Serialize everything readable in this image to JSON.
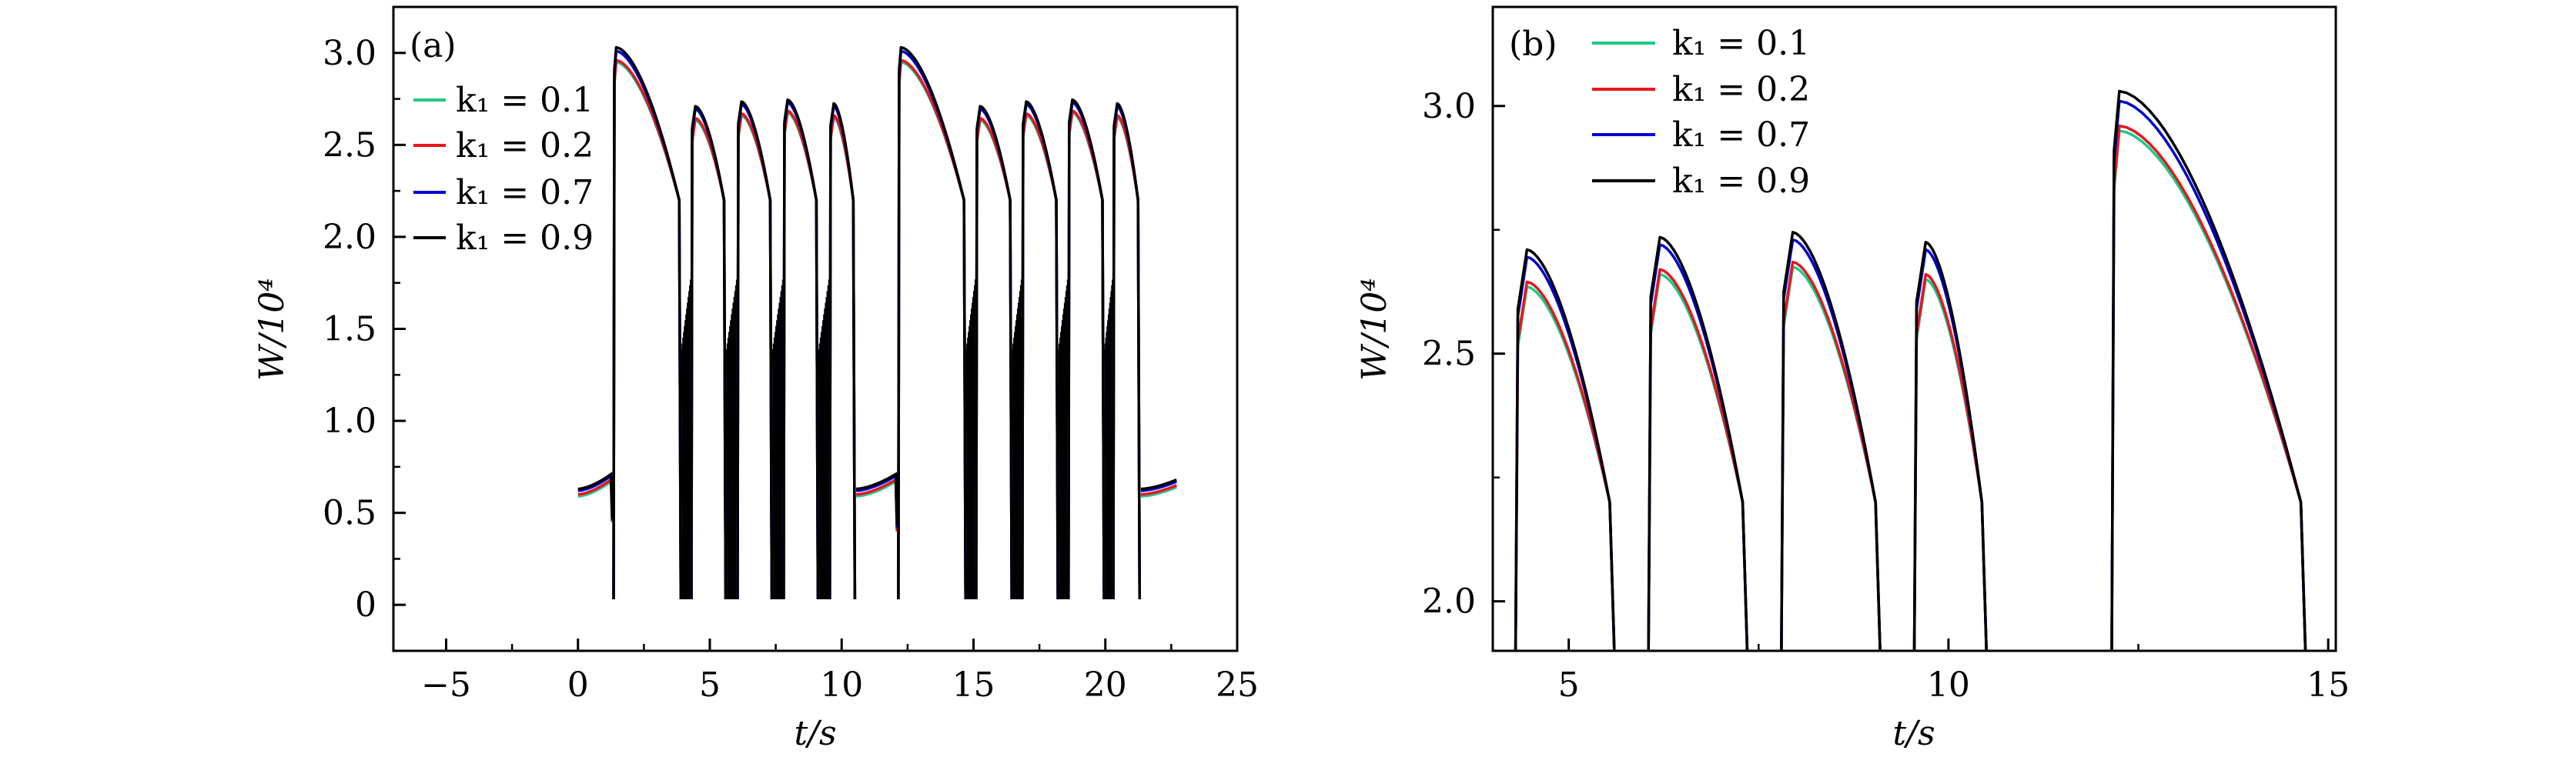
{
  "chart_data": [
    {
      "type": "line",
      "panel_label": "(a)",
      "xlabel": "t/s",
      "ylabel": "W/10⁴",
      "xlim": [
        -7,
        25
      ],
      "ylim": [
        -0.25,
        3.25
      ],
      "xticks": [
        -5,
        0,
        5,
        10,
        15,
        20,
        25
      ],
      "xtick_labels": [
        "−5",
        "0",
        "5",
        "10",
        "15",
        "20",
        "25"
      ],
      "yticks": [
        0,
        0.5,
        1.0,
        1.5,
        2.0,
        2.5,
        3.0
      ],
      "ytick_labels": [
        "0",
        "0.5",
        "1.0",
        "1.5",
        "2.0",
        "2.5",
        "3.0"
      ],
      "grid": false,
      "legend_position": "top-left",
      "bursts": [
        [
          3.9,
          4.3
        ],
        [
          5.6,
          6.05
        ],
        [
          7.35,
          7.8
        ],
        [
          9.1,
          9.55
        ],
        [
          14.7,
          15.1
        ],
        [
          16.45,
          16.85
        ],
        [
          18.2,
          18.6
        ],
        [
          19.95,
          20.3
        ]
      ],
      "burst_max": 1.8,
      "series": [
        {
          "name": "k₁ = 0.1",
          "color": "#1ec98a",
          "baseline": [
            [
              0,
              0.59,
              1.25,
              0.67
            ],
            [
              10.55,
              0.59,
              12.05,
              0.67
            ],
            [
              21.35,
              0.59,
              22.7,
              0.64
            ]
          ],
          "dips": [
            [
              1.3,
              0.45
            ],
            [
              12.1,
              0.4
            ]
          ],
          "pulses": [
            [
              1.35,
              1.45,
              2.95,
              3.9
            ],
            [
              4.3,
              4.45,
              2.635,
              5.6
            ],
            [
              6.05,
              6.2,
              2.66,
              7.35
            ],
            [
              7.8,
              7.95,
              2.675,
              9.1
            ],
            [
              9.55,
              9.7,
              2.65,
              10.5
            ],
            [
              12.15,
              12.25,
              2.95,
              14.7
            ],
            [
              15.1,
              15.25,
              2.635,
              16.45
            ],
            [
              16.85,
              17.0,
              2.66,
              18.2
            ],
            [
              18.6,
              18.75,
              2.675,
              19.95
            ],
            [
              20.3,
              20.45,
              2.65,
              21.3
            ]
          ]
        },
        {
          "name": "k₁ = 0.2",
          "color": "#e8141b",
          "baseline": [
            [
              0,
              0.6,
              1.25,
              0.68
            ],
            [
              10.55,
              0.6,
              12.05,
              0.68
            ],
            [
              21.35,
              0.6,
              22.7,
              0.65
            ]
          ],
          "dips": [
            [
              1.3,
              0.45
            ],
            [
              12.1,
              0.4
            ]
          ],
          "pulses": [
            [
              1.35,
              1.45,
              2.96,
              3.9
            ],
            [
              4.3,
              4.45,
              2.645,
              5.6
            ],
            [
              6.05,
              6.2,
              2.67,
              7.35
            ],
            [
              7.8,
              7.95,
              2.685,
              9.1
            ],
            [
              9.55,
              9.7,
              2.66,
              10.5
            ],
            [
              12.15,
              12.25,
              2.96,
              14.7
            ],
            [
              15.1,
              15.25,
              2.645,
              16.45
            ],
            [
              16.85,
              17.0,
              2.67,
              18.2
            ],
            [
              18.6,
              18.75,
              2.685,
              19.95
            ],
            [
              20.3,
              20.45,
              2.66,
              21.3
            ]
          ]
        },
        {
          "name": "k₁ = 0.7",
          "color": "#0000d0",
          "baseline": [
            [
              0,
              0.62,
              1.25,
              0.7
            ],
            [
              10.55,
              0.62,
              12.05,
              0.7
            ],
            [
              21.35,
              0.62,
              22.7,
              0.67
            ]
          ],
          "dips": [
            [
              1.3,
              0.46
            ],
            [
              12.1,
              0.42
            ]
          ],
          "pulses": [
            [
              1.35,
              1.45,
              3.01,
              3.9
            ],
            [
              4.3,
              4.45,
              2.695,
              5.6
            ],
            [
              6.05,
              6.2,
              2.72,
              7.35
            ],
            [
              7.8,
              7.95,
              2.73,
              9.1
            ],
            [
              9.55,
              9.7,
              2.71,
              10.5
            ],
            [
              12.15,
              12.25,
              3.01,
              14.7
            ],
            [
              15.1,
              15.25,
              2.695,
              16.45
            ],
            [
              16.85,
              17.0,
              2.72,
              18.2
            ],
            [
              18.6,
              18.75,
              2.73,
              19.95
            ],
            [
              20.3,
              20.45,
              2.71,
              21.3
            ]
          ]
        },
        {
          "name": "k₁ = 0.9",
          "color": "#000000",
          "baseline": [
            [
              0,
              0.63,
              1.25,
              0.71
            ],
            [
              10.55,
              0.63,
              12.05,
              0.71
            ],
            [
              21.35,
              0.63,
              22.7,
              0.68
            ]
          ],
          "dips": [
            [
              1.3,
              0.47
            ],
            [
              12.1,
              0.43
            ]
          ],
          "pulses": [
            [
              1.35,
              1.45,
              3.03,
              3.9
            ],
            [
              4.3,
              4.45,
              2.71,
              5.6
            ],
            [
              6.05,
              6.2,
              2.735,
              7.35
            ],
            [
              7.8,
              7.95,
              2.745,
              9.1
            ],
            [
              9.55,
              9.7,
              2.725,
              10.5
            ],
            [
              12.15,
              12.25,
              3.03,
              14.7
            ],
            [
              15.1,
              15.25,
              2.71,
              16.45
            ],
            [
              16.85,
              17.0,
              2.735,
              18.2
            ],
            [
              18.6,
              18.75,
              2.745,
              19.95
            ],
            [
              20.3,
              20.45,
              2.725,
              21.3
            ]
          ]
        }
      ]
    },
    {
      "type": "line",
      "panel_label": "(b)",
      "xlabel": "t/s",
      "ylabel": "W/10⁴",
      "xlim": [
        4,
        15.1
      ],
      "ylim": [
        1.9,
        3.2
      ],
      "xticks": [
        5,
        10,
        15
      ],
      "xtick_labels": [
        "5",
        "10",
        "15"
      ],
      "yticks": [
        2.0,
        2.5,
        3.0
      ],
      "ytick_labels": [
        "2.0",
        "2.5",
        "3.0"
      ],
      "grid": false,
      "legend_position": "top-left",
      "series": [
        {
          "name": "k₁ = 0.1",
          "color": "#1ec98a",
          "pulses": [
            [
              4.3,
              4.45,
              2.635,
              5.6
            ],
            [
              6.05,
              6.2,
              2.66,
              7.35
            ],
            [
              7.8,
              7.95,
              2.675,
              9.1
            ],
            [
              9.55,
              9.7,
              2.65,
              10.5
            ],
            [
              12.15,
              12.25,
              2.95,
              14.7
            ]
          ]
        },
        {
          "name": "k₁ = 0.2",
          "color": "#e8141b",
          "pulses": [
            [
              4.3,
              4.45,
              2.645,
              5.6
            ],
            [
              6.05,
              6.2,
              2.67,
              7.35
            ],
            [
              7.8,
              7.95,
              2.685,
              9.1
            ],
            [
              9.55,
              9.7,
              2.66,
              10.5
            ],
            [
              12.15,
              12.25,
              2.96,
              14.7
            ]
          ]
        },
        {
          "name": "k₁ = 0.7",
          "color": "#0000d0",
          "pulses": [
            [
              4.3,
              4.45,
              2.695,
              5.6
            ],
            [
              6.05,
              6.2,
              2.72,
              7.35
            ],
            [
              7.8,
              7.95,
              2.73,
              9.1
            ],
            [
              9.55,
              9.7,
              2.71,
              10.5
            ],
            [
              12.15,
              12.25,
              3.01,
              14.7
            ]
          ]
        },
        {
          "name": "k₁ = 0.9",
          "color": "#000000",
          "pulses": [
            [
              4.3,
              4.45,
              2.71,
              5.6
            ],
            [
              6.05,
              6.2,
              2.735,
              7.35
            ],
            [
              7.8,
              7.95,
              2.745,
              9.1
            ],
            [
              9.55,
              9.7,
              2.725,
              10.5
            ],
            [
              12.15,
              12.25,
              3.03,
              14.7
            ]
          ]
        }
      ]
    }
  ]
}
